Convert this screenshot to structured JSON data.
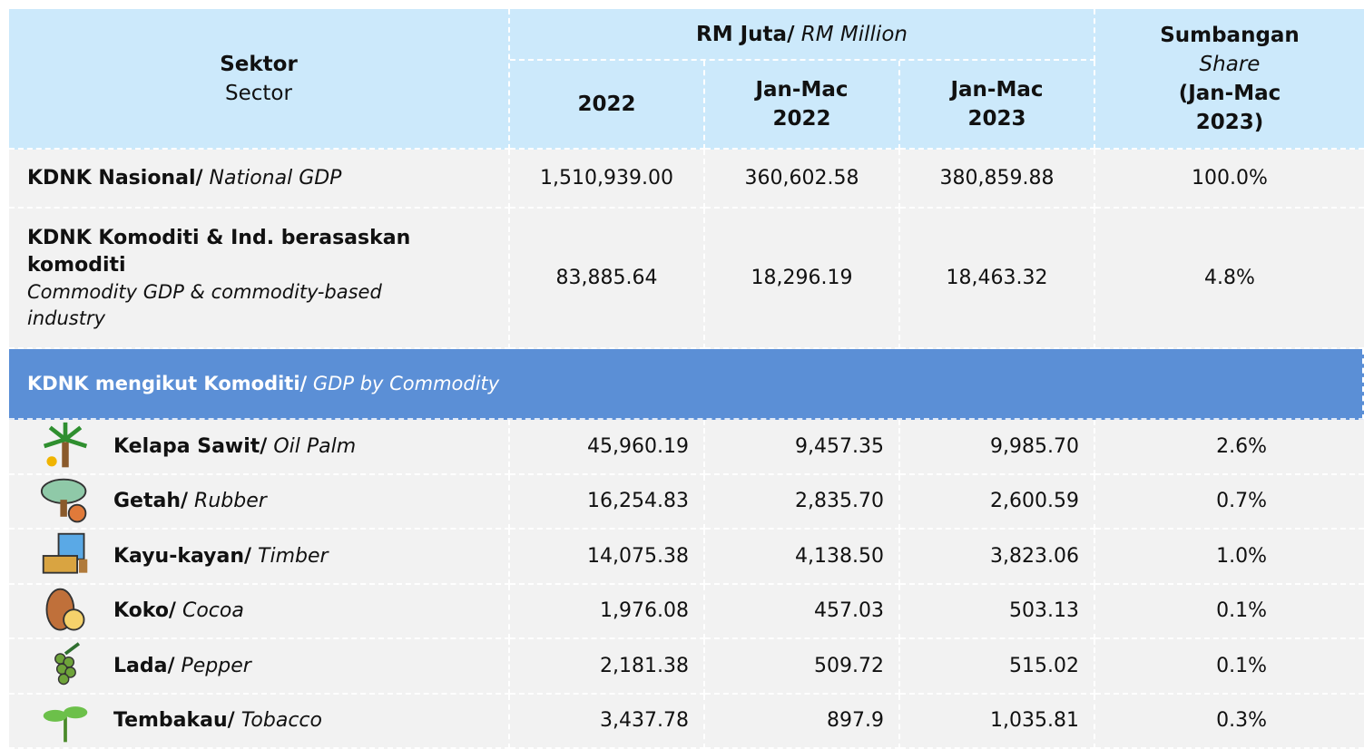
{
  "header": {
    "sector_bold": "Sektor",
    "sector_en": "Sector",
    "rm_bold": "RM Juta/",
    "rm_italic": "RM Million",
    "years": [
      "2022",
      "Jan-Mac 2022",
      "Jan-Mac 2023"
    ],
    "share_bold": "Sumbangan",
    "share_italic": "Share",
    "share_period": "(Jan-Mac 2023)"
  },
  "table": {
    "rows": [
      {
        "name_bold": "KDNK Nasional/",
        "name_italic": "National GDP",
        "values": [
          "1,510,939.00",
          "360,602.58",
          "380,859.88",
          "100.0%"
        ]
      },
      {
        "name_bold": "KDNK Komoditi & Ind. berasaskan komoditi",
        "name_italic": "Commodity GDP & commodity-based industry",
        "values": [
          "83,885.64",
          "18,296.19",
          "18,463.32",
          "4.8%"
        ]
      }
    ],
    "section": {
      "bold": "KDNK mengikut Komoditi/",
      "italic": "GDP by Commodity"
    },
    "commodities": [
      {
        "name": "Kelapa Sawit/",
        "en": "Oil Palm",
        "values": [
          "45,960.19",
          "9,457.35",
          "9,985.70",
          "2.6%"
        ]
      },
      {
        "name": "Getah/",
        "en": "Rubber",
        "values": [
          "16,254.83",
          "2,835.70",
          "2,600.59",
          "0.7%"
        ]
      },
      {
        "name": "Kayu-kayan/",
        "en": "Timber",
        "values": [
          "14,075.38",
          "4,138.50",
          "3,823.06",
          "1.0%"
        ]
      },
      {
        "name": "Koko/",
        "en": "Cocoa",
        "values": [
          "1,976.08",
          "457.03",
          "503.13",
          "0.1%"
        ]
      },
      {
        "name": "Lada/",
        "en": "Pepper",
        "values": [
          "2,181.38",
          "509.72",
          "515.02",
          "0.1%"
        ]
      },
      {
        "name": "Tembakau/",
        "en": "Tobacco",
        "values": [
          "3,437.78",
          "897.9",
          "1,035.81",
          "0.3%"
        ]
      }
    ]
  }
}
